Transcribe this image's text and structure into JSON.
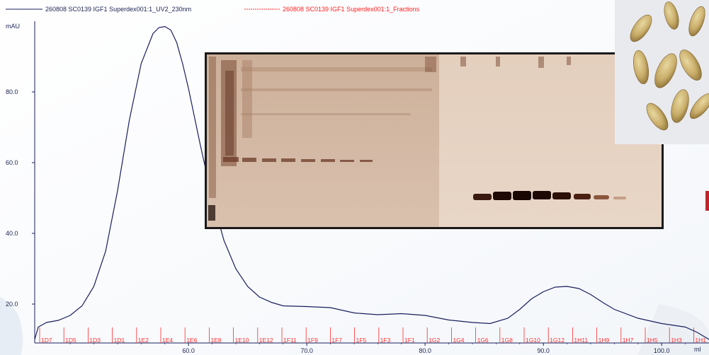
{
  "legend": {
    "uv_label": "260808 SC0139 IGF1 Superdex001:1_UV2_230nm",
    "fractions_label": "260808 SC0139 IGF1 Superdex001:1_Fractions"
  },
  "colors": {
    "uv_line": "#1a1f5e",
    "fractions": "#ff2a2a",
    "axis": "#1a1f5e"
  },
  "chart_data": {
    "type": "line",
    "title": "",
    "xlabel": "ml",
    "ylabel": "mAU",
    "xlim": [
      47.0,
      104.0
    ],
    "ylim": [
      9.0,
      100.0
    ],
    "x_ticks": [
      60.0,
      70.0,
      80.0,
      90.0,
      100.0
    ],
    "x_tick_labels": [
      "60.0",
      "70.0",
      "80.0",
      "90.0",
      "100.0"
    ],
    "y_ticks": [
      20.0,
      40.0,
      60.0,
      80.0
    ],
    "y_tick_labels": [
      "20.0",
      "40.0",
      "60.0",
      "80.0"
    ],
    "series": [
      {
        "name": "260808 SC0139 IGF1 Superdex001:1_UV2_230nm",
        "x": [
          47.0,
          47.3,
          48.0,
          49.0,
          50.0,
          51.0,
          52.0,
          53.0,
          54.0,
          55.0,
          56.0,
          57.0,
          57.5,
          58.0,
          58.5,
          59.0,
          59.5,
          60.0,
          61.0,
          62.0,
          63.0,
          64.0,
          65.0,
          66.0,
          67.0,
          68.0,
          70.0,
          72.0,
          74.0,
          76.0,
          78.0,
          80.0,
          82.0,
          84.0,
          85.5,
          87.0,
          88.0,
          89.0,
          90.0,
          91.0,
          92.0,
          93.0,
          94.0,
          95.0,
          96.0,
          98.0,
          100.0,
          101.0,
          102.0,
          103.0,
          104.0
        ],
        "y": [
          10.0,
          13.5,
          14.8,
          15.4,
          16.8,
          19.5,
          25.0,
          35.0,
          52.0,
          72.0,
          88.0,
          96.5,
          98.2,
          98.5,
          97.5,
          94.0,
          88.0,
          81.0,
          65.0,
          50.0,
          38.0,
          30.0,
          25.0,
          22.0,
          20.5,
          19.5,
          19.3,
          19.0,
          17.5,
          17.0,
          17.3,
          16.8,
          15.5,
          14.8,
          14.5,
          16.0,
          18.5,
          21.5,
          23.5,
          24.8,
          25.0,
          24.4,
          22.7,
          20.5,
          18.5,
          16.0,
          14.5,
          14.0,
          13.5,
          12.0,
          10.0
        ]
      }
    ],
    "fractions": [
      "1D7",
      "1D5",
      "1D3",
      "1D1",
      "1E2",
      "1E4",
      "1E6",
      "1E8",
      "1E10",
      "1E12",
      "1F11",
      "1F9",
      "1F7",
      "1F5",
      "1F3",
      "1F1",
      "1G2",
      "1G4",
      "1G6",
      "1G8",
      "1G10",
      "1G12",
      "1H11",
      "1H9",
      "1H7",
      "1H5",
      "1H3",
      "1H1"
    ]
  },
  "images": {
    "gel_photo": "gel-electrophoresis-photo",
    "seed_photo": "barley-grains-photo"
  }
}
